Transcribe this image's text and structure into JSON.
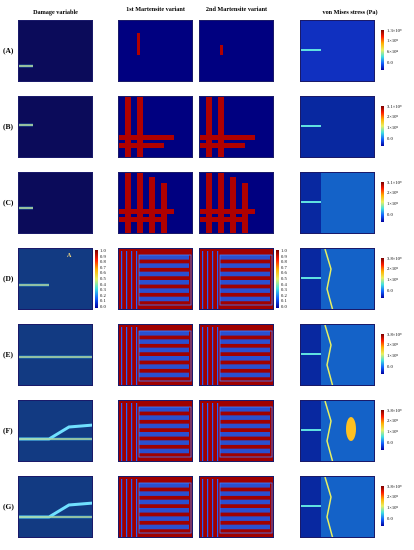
{
  "headers": {
    "damage": "Damage variable",
    "m1": "1st Martensite variant",
    "m2": "2nd Martensite variant",
    "vm": "von Mises stress (Pa)"
  },
  "rows": [
    "(A)",
    "(B)",
    "(C)",
    "(D)",
    "(E)",
    "(F)",
    "(G)"
  ],
  "stress_scales": [
    {
      "max": "1.3×10⁹",
      "ticks": [
        "1×10⁹",
        "6×10⁸",
        "0.0"
      ]
    },
    {
      "max": "3.1×10⁹",
      "ticks": [
        "2×10⁹",
        "1×10⁹",
        "0.0"
      ]
    },
    {
      "max": "3.1×10⁹",
      "ticks": [
        "2×10⁹",
        "1×10⁹",
        "0.0"
      ]
    },
    {
      "max": "3.8×10⁹",
      "ticks": [
        "2×10⁹",
        "1×10⁹",
        "0.0"
      ]
    },
    {
      "max": "3.8×10⁹",
      "ticks": [
        "2×10⁹",
        "1×10⁹",
        "0.0"
      ]
    },
    {
      "max": "3.8×10⁹",
      "ticks": [
        "2×10⁹",
        "1×10⁹",
        "0.0"
      ]
    },
    {
      "max": "3.8×10⁹",
      "ticks": [
        "2×10⁹",
        "1×10⁹",
        "0.0"
      ]
    }
  ],
  "unit_scale": [
    "1.0",
    "0.9",
    "0.8",
    "0.7",
    "0.6",
    "0.5",
    "0.4",
    "0.3",
    "0.2",
    "0.1",
    "0.0"
  ],
  "annotation": "A"
}
